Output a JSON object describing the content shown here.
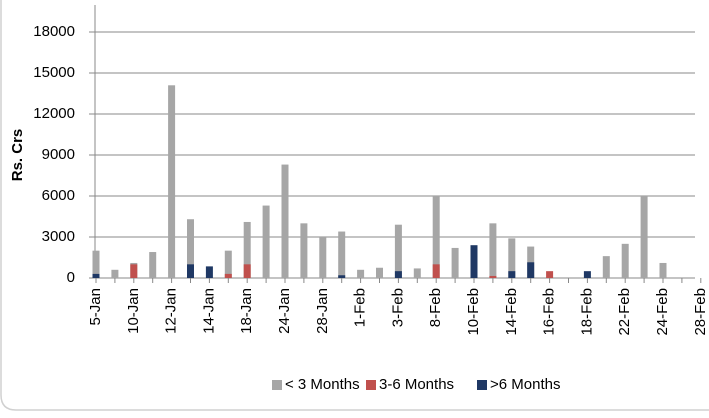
{
  "chart_data": {
    "type": "bar",
    "y_label": "Rs. Crs",
    "categories": [
      "5-Jan",
      null,
      "10-Jan",
      null,
      "12-Jan",
      null,
      "14-Jan",
      null,
      "18-Jan",
      null,
      "24-Jan",
      null,
      "28-Jan",
      null,
      "1-Feb",
      null,
      "3-Feb",
      null,
      "8-Feb",
      null,
      "10-Feb",
      null,
      "14-Feb",
      null,
      "16-Feb",
      null,
      "18-Feb",
      null,
      "22-Feb",
      null,
      "24-Feb",
      null,
      "28-Feb"
    ],
    "series": [
      {
        "name": "< 3 Months",
        "color": "#a6a6a6",
        "values": [
          2000,
          600,
          1100,
          1900,
          14100,
          4300,
          0,
          2000,
          4100,
          5300,
          8300,
          4000,
          3000,
          3400,
          600,
          750,
          3900,
          700,
          6000,
          2200,
          0,
          4000,
          2900,
          2300,
          0,
          0,
          0,
          1600,
          2500,
          6000,
          1100,
          0,
          0
        ]
      },
      {
        "name": "3-6 Months",
        "color": "#c0504d",
        "values": [
          0,
          0,
          1000,
          0,
          0,
          0,
          0,
          300,
          1000,
          0,
          0,
          0,
          0,
          0,
          0,
          0,
          0,
          0,
          1000,
          0,
          0,
          150,
          0,
          0,
          500,
          0,
          0,
          0,
          0,
          0,
          0,
          0,
          0
        ]
      },
      {
        "name": ">6 Months",
        "color": "#1f3864",
        "values": [
          300,
          0,
          0,
          0,
          0,
          1000,
          850,
          0,
          0,
          0,
          0,
          0,
          0,
          200,
          0,
          0,
          500,
          0,
          0,
          0,
          2400,
          0,
          500,
          1150,
          0,
          0,
          500,
          0,
          0,
          0,
          0,
          0,
          0
        ]
      }
    ],
    "ylim": [
      0,
      18000
    ],
    "yticks": [
      0,
      3000,
      6000,
      9000,
      12000,
      15000,
      18000
    ],
    "grid": true,
    "legend": "bottom"
  }
}
